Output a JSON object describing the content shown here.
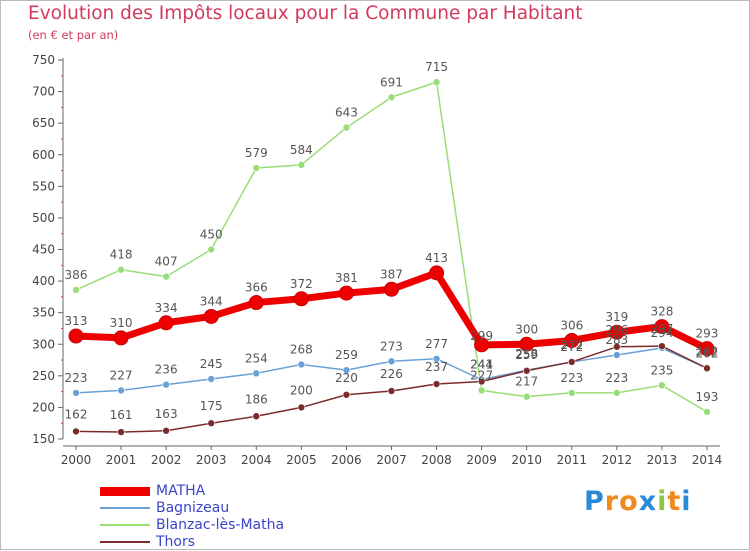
{
  "chart_data": {
    "type": "line",
    "title": "Evolution des Impôts locaux pour la Commune par Habitant",
    "subtitle": "(en € et par an)",
    "x": [
      "2000",
      "2001",
      "2002",
      "2003",
      "2004",
      "2005",
      "2006",
      "2007",
      "2008",
      "2009",
      "2010",
      "2011",
      "2012",
      "2013",
      "2014"
    ],
    "ylim": [
      150,
      750
    ],
    "yticks": [
      150,
      200,
      250,
      300,
      350,
      400,
      450,
      500,
      550,
      600,
      650,
      700,
      750
    ],
    "grid": false,
    "legend_position": "bottom-left",
    "series": [
      {
        "name": "MATHA",
        "color": "#ee0000",
        "values": [
          313,
          310,
          334,
          344,
          366,
          372,
          381,
          387,
          413,
          299,
          300,
          306,
          319,
          328,
          293
        ]
      },
      {
        "name": "Bagnizeau",
        "color": "#6aa0d8",
        "values": [
          223,
          227,
          236,
          245,
          254,
          268,
          259,
          273,
          277,
          244,
          259,
          272,
          283,
          294,
          262
        ]
      },
      {
        "name": "Blanzac-lès-Matha",
        "color": "#99dd77",
        "values": [
          386,
          418,
          407,
          450,
          579,
          584,
          643,
          691,
          715,
          227,
          217,
          223,
          223,
          235,
          193
        ]
      },
      {
        "name": "Thors",
        "color": "#7b2b2b",
        "values": [
          162,
          161,
          163,
          175,
          186,
          200,
          220,
          226,
          237,
          241,
          258,
          272,
          296,
          297,
          262
        ]
      }
    ]
  },
  "brand": "Proxiti"
}
